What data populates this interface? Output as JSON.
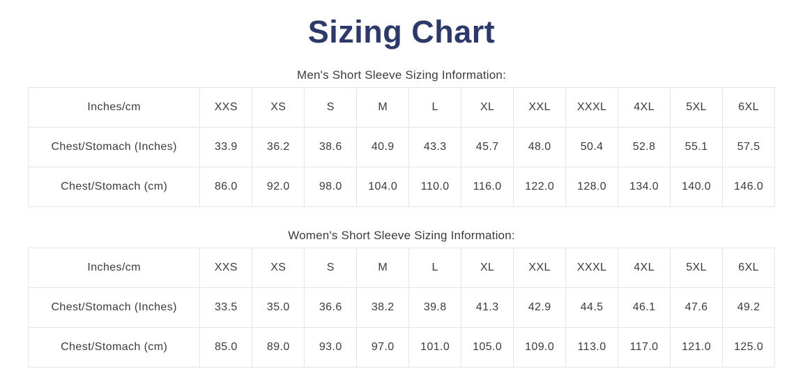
{
  "page": {
    "title": "Sizing Chart"
  },
  "colors": {
    "title": "#2d3a69",
    "text": "#3b3b3b",
    "table_border": "#e5e5e5",
    "background": "#ffffff"
  },
  "tables": [
    {
      "caption": "Men's Short Sleeve Sizing Information:",
      "header": [
        "Inches/cm",
        "XXS",
        "XS",
        "S",
        "M",
        "L",
        "XL",
        "XXL",
        "XXXL",
        "4XL",
        "5XL",
        "6XL"
      ],
      "rows": [
        [
          "Chest/Stomach (Inches)",
          "33.9",
          "36.2",
          "38.6",
          "40.9",
          "43.3",
          "45.7",
          "48.0",
          "50.4",
          "52.8",
          "55.1",
          "57.5"
        ],
        [
          "Chest/Stomach (cm)",
          "86.0",
          "92.0",
          "98.0",
          "104.0",
          "110.0",
          "116.0",
          "122.0",
          "128.0",
          "134.0",
          "140.0",
          "146.0"
        ]
      ]
    },
    {
      "caption": "Women's Short Sleeve Sizing Information:",
      "header": [
        "Inches/cm",
        "XXS",
        "XS",
        "S",
        "M",
        "L",
        "XL",
        "XXL",
        "XXXL",
        "4XL",
        "5XL",
        "6XL"
      ],
      "rows": [
        [
          "Chest/Stomach (Inches)",
          "33.5",
          "35.0",
          "36.6",
          "38.2",
          "39.8",
          "41.3",
          "42.9",
          "44.5",
          "46.1",
          "47.6",
          "49.2"
        ],
        [
          "Chest/Stomach (cm)",
          "85.0",
          "89.0",
          "93.0",
          "97.0",
          "101.0",
          "105.0",
          "109.0",
          "113.0",
          "117.0",
          "121.0",
          "125.0"
        ]
      ]
    }
  ]
}
